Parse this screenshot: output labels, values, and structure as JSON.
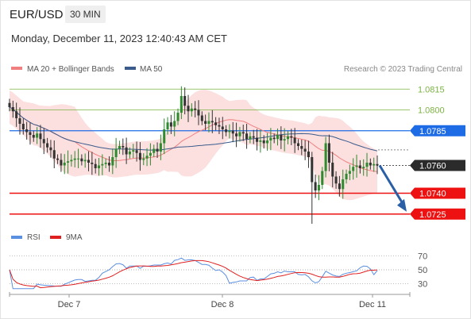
{
  "header": {
    "symbol": "EUR/USD",
    "timeframe": "30 MIN",
    "datetime": "Monday, December 11, 2023 12:40:43 AM CET"
  },
  "legend": {
    "ma20_bb": "MA 20 + Bollinger Bands",
    "ma50": "MA 50",
    "credit": "Research © 2023 Trading Central",
    "rsi": "RSI",
    "ma9": "9MA"
  },
  "colors": {
    "ma20": "#f08080",
    "ma50": "#3a5b8c",
    "bands": "#fbd9d9",
    "candle": "#2e8b2e",
    "candle_down": "#333333",
    "resistance_green": "#7cb342",
    "pivot_blue": "#1e6be6",
    "support_red": "#ee1111",
    "arrow": "#2a5fa8",
    "rsi": "#5b8fe0",
    "ma9": "#e02020"
  },
  "chart_data": [
    {
      "type": "candlestick",
      "title": "",
      "ylim": [
        1.0718,
        1.0822
      ],
      "x_ticks": [
        "Dec 7",
        "Dec 8",
        "Dec 11"
      ],
      "levels": [
        {
          "value": 1.0815,
          "label": "1.0815",
          "kind": "resistance"
        },
        {
          "value": 1.08,
          "label": "1.0800",
          "kind": "resistance"
        },
        {
          "value": 1.0785,
          "label": "1.0785",
          "kind": "pivot"
        },
        {
          "value": 1.074,
          "label": "1.0740",
          "kind": "support"
        },
        {
          "value": 1.0725,
          "label": "1.0725",
          "kind": "support"
        }
      ],
      "last_price": {
        "value": 1.076,
        "label": "1.0760"
      },
      "closes": [
        1.0802,
        1.0799,
        1.0794,
        1.079,
        1.0786,
        1.0784,
        1.0782,
        1.078,
        1.0783,
        1.0779,
        1.0776,
        1.0773,
        1.0771,
        1.0765,
        1.0764,
        1.076,
        1.0762,
        1.0763,
        1.0764,
        1.0765,
        1.0765,
        1.0763,
        1.0764,
        1.0762,
        1.0761,
        1.0758,
        1.076,
        1.0761,
        1.0762,
        1.076,
        1.0766,
        1.0772,
        1.0774,
        1.0773,
        1.0768,
        1.077,
        1.0771,
        1.0769,
        1.0764,
        1.0765,
        1.0767,
        1.0769,
        1.0772,
        1.077,
        1.0776,
        1.0786,
        1.0791,
        1.0788,
        1.0792,
        1.0798,
        1.081,
        1.0803,
        1.0799,
        1.0801,
        1.08,
        1.0796,
        1.0792,
        1.079,
        1.0792,
        1.0791,
        1.0789,
        1.0788,
        1.0786,
        1.0784,
        1.0785,
        1.0783,
        1.0781,
        1.0784,
        1.0783,
        1.0779,
        1.0781,
        1.078,
        1.0777,
        1.0778,
        1.0776,
        1.0778,
        1.078,
        1.0779,
        1.0782,
        1.0778,
        1.0779,
        1.0781,
        1.078,
        1.0776,
        1.0774,
        1.0772,
        1.077,
        1.0766,
        1.0748,
        1.0742,
        1.0746,
        1.0756,
        1.0776,
        1.0762,
        1.0752,
        1.0747,
        1.0743,
        1.075,
        1.0754,
        1.0756,
        1.0759,
        1.076,
        1.0758,
        1.0759,
        1.0762,
        1.076,
        1.0761,
        1.076
      ],
      "series": [
        {
          "name": "MA 20 + Bollinger Bands"
        },
        {
          "name": "MA 50"
        }
      ]
    },
    {
      "type": "line",
      "title": "",
      "ylim": [
        20,
        80
      ],
      "y_ticks": [
        70,
        50,
        30
      ],
      "series": [
        {
          "name": "RSI"
        },
        {
          "name": "9MA"
        }
      ]
    }
  ]
}
